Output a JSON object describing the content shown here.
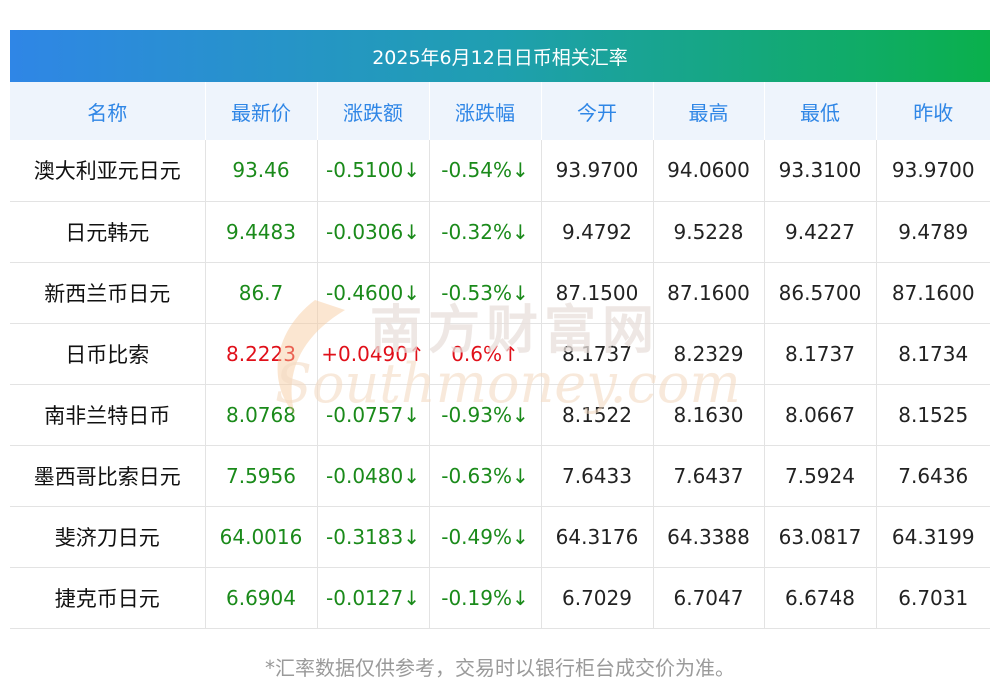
{
  "title": "2025年6月12日日币相关汇率",
  "headers": [
    "名称",
    "最新价",
    "涨跌额",
    "涨跌幅",
    "今开",
    "最高",
    "最低",
    "昨收"
  ],
  "rows": [
    {
      "name": "澳大利亚元日元",
      "latest": "93.46",
      "change": "-0.5100↓",
      "pct": "-0.54%↓",
      "open": "93.9700",
      "high": "94.0600",
      "low": "93.3100",
      "prev": "93.9700",
      "trend": "down"
    },
    {
      "name": "日元韩元",
      "latest": "9.4483",
      "change": "-0.0306↓",
      "pct": "-0.32%↓",
      "open": "9.4792",
      "high": "9.5228",
      "low": "9.4227",
      "prev": "9.4789",
      "trend": "down"
    },
    {
      "name": "新西兰币日元",
      "latest": "86.7",
      "change": "-0.4600↓",
      "pct": "-0.53%↓",
      "open": "87.1500",
      "high": "87.1600",
      "low": "86.5700",
      "prev": "87.1600",
      "trend": "down"
    },
    {
      "name": "日币比索",
      "latest": "8.2223",
      "change": "+0.0490↑",
      "pct": "0.6%↑",
      "open": "8.1737",
      "high": "8.2329",
      "low": "8.1737",
      "prev": "8.1734",
      "trend": "up"
    },
    {
      "name": "南非兰特日币",
      "latest": "8.0768",
      "change": "-0.0757↓",
      "pct": "-0.93%↓",
      "open": "8.1522",
      "high": "8.1630",
      "low": "8.0667",
      "prev": "8.1525",
      "trend": "down"
    },
    {
      "name": "墨西哥比索日元",
      "latest": "7.5956",
      "change": "-0.0480↓",
      "pct": "-0.63%↓",
      "open": "7.6433",
      "high": "7.6437",
      "low": "7.5924",
      "prev": "7.6436",
      "trend": "down"
    },
    {
      "name": "斐济刀日元",
      "latest": "64.0016",
      "change": "-0.3183↓",
      "pct": "-0.49%↓",
      "open": "64.3176",
      "high": "64.3388",
      "low": "63.0817",
      "prev": "64.3199",
      "trend": "down"
    },
    {
      "name": "捷克币日元",
      "latest": "6.6904",
      "change": "-0.0127↓",
      "pct": "-0.19%↓",
      "open": "6.7029",
      "high": "6.7047",
      "low": "6.6748",
      "prev": "6.7031",
      "trend": "down"
    }
  ],
  "watermark": {
    "cn": "南方财富网",
    "en": "Southmoney.com"
  },
  "footnote": "*汇率数据仅供参考，交易时以银行柜台成交价为准。",
  "colors": {
    "up": "#e0101a",
    "down": "#1a8a1a",
    "header_text": "#2f86e6",
    "header_bg": "#eef4fc"
  }
}
